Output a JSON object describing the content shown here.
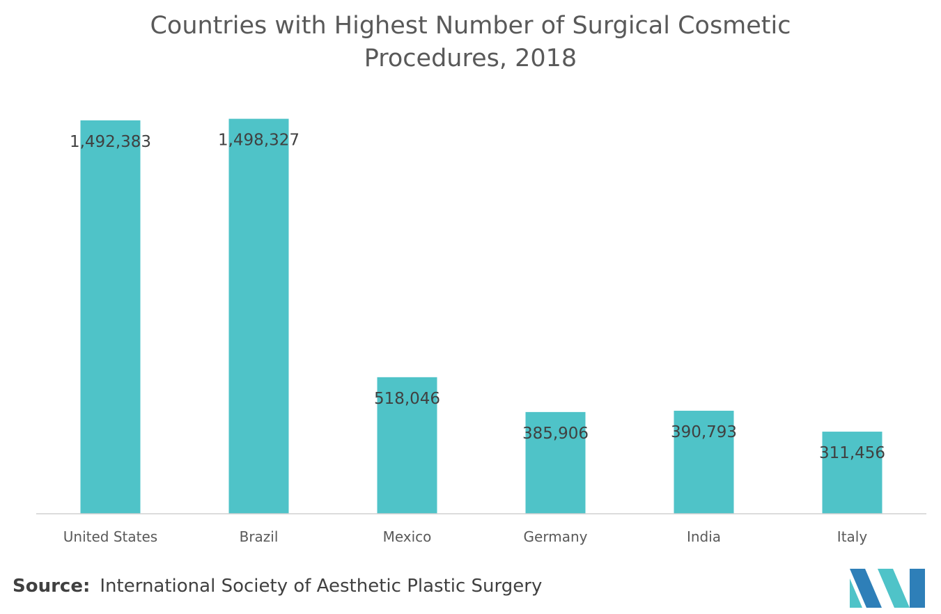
{
  "chart_data": {
    "type": "bar",
    "title_lines": [
      "Countries with Highest Number of Surgical Cosmetic",
      "Procedures, 2018"
    ],
    "categories": [
      "United States",
      "Brazil",
      "Mexico",
      "Germany",
      "India",
      "Italy"
    ],
    "values": [
      1492383,
      1498327,
      518046,
      385906,
      390793,
      311456
    ],
    "value_labels": [
      "1,492,383",
      "1,498,327",
      "518,046",
      "385,906",
      "390,793",
      "311,456"
    ],
    "ylim": [
      0,
      1500000
    ],
    "grid": false,
    "legend": "none",
    "bar_color": "#4fc3c8"
  },
  "source": {
    "label": "Source:",
    "text": "International Society of Aesthetic Plastic Surgery"
  },
  "logo": {
    "icon": "mordor-intelligence-logo",
    "colors": [
      "#2e7fb8",
      "#4fc3c8"
    ]
  }
}
